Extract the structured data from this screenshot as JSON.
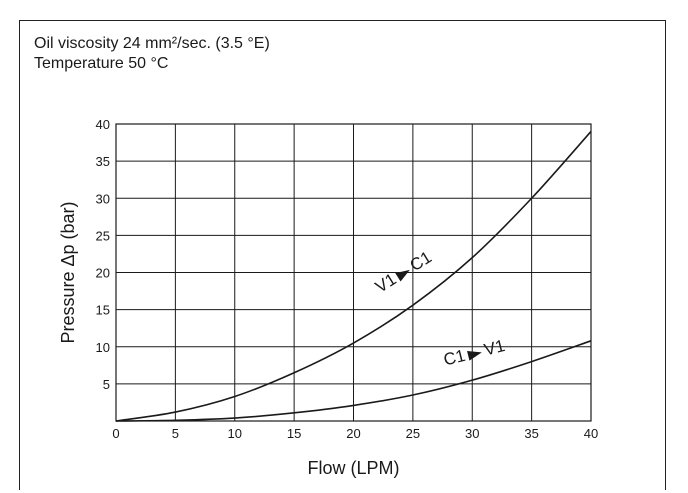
{
  "notes": {
    "viscosity": "Oil viscosity 24 mm²/sec. (3.5 °E)",
    "temperature": "Temperature 50 °C"
  },
  "chart_data": {
    "type": "line",
    "title": "",
    "xlabel": "Flow (LPM)",
    "ylabel": "Pressure Δp (bar)",
    "xlim": [
      0,
      40
    ],
    "ylim": [
      0,
      40
    ],
    "xticks": [
      0,
      5,
      10,
      15,
      20,
      25,
      30,
      35,
      40
    ],
    "yticks": [
      5,
      10,
      15,
      20,
      25,
      30,
      35,
      40
    ],
    "grid": true,
    "series": [
      {
        "name": "V1 → C1",
        "from": "V1",
        "to": "C1",
        "x": [
          0,
          5,
          10,
          15,
          20,
          25,
          30,
          35,
          40
        ],
        "y": [
          0,
          1.2,
          3.3,
          6.5,
          10.5,
          15.6,
          22.0,
          30.0,
          39.0
        ]
      },
      {
        "name": "C1 → V1",
        "from": "C1",
        "to": "V1",
        "x": [
          0,
          5,
          10,
          15,
          20,
          25,
          30,
          35,
          40
        ],
        "y": [
          0,
          0.1,
          0.4,
          1.1,
          2.1,
          3.5,
          5.5,
          8.0,
          10.8
        ]
      }
    ]
  }
}
